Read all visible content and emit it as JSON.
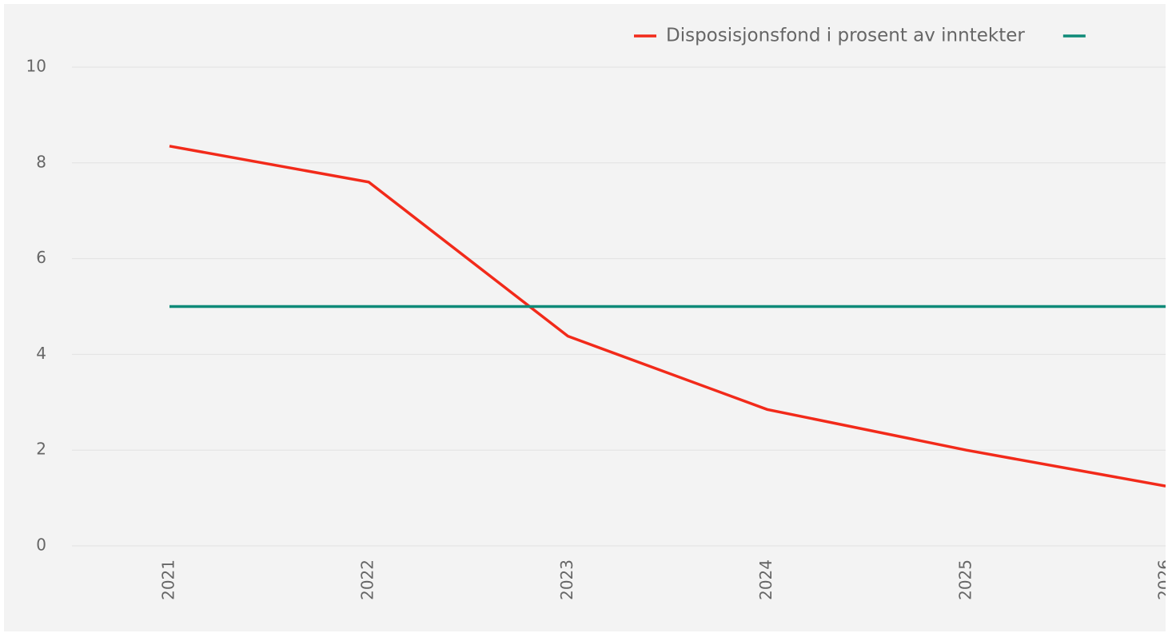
{
  "chart_data": {
    "type": "line",
    "categories": [
      "2021",
      "2022",
      "2023",
      "2024",
      "2025",
      "2026"
    ],
    "series": [
      {
        "name": "Disposisjonsfond i prosent av inntekter",
        "color": "#f22a1a",
        "values": [
          8.35,
          7.6,
          4.38,
          2.85,
          2.0,
          1.25
        ]
      },
      {
        "color": "#0e8a78",
        "values": [
          5,
          5,
          5,
          5,
          5,
          5
        ]
      }
    ],
    "ylim": [
      0,
      10
    ],
    "yticks": [
      0,
      2,
      4,
      6,
      8,
      10
    ],
    "grid": true
  }
}
